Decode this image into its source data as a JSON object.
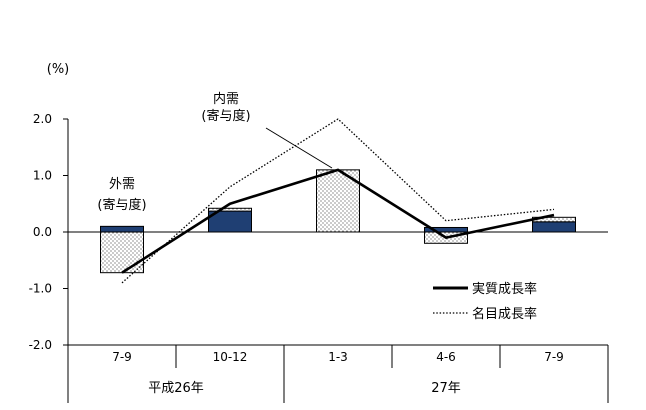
{
  "chart_data": {
    "type": "bar",
    "y_unit_label": "(%)",
    "ylim": [
      -2.0,
      2.0
    ],
    "y_ticks": [
      "2.0",
      "1.0",
      "0.0",
      "-1.0",
      "-2.0"
    ],
    "y_tick_values": [
      2.0,
      1.0,
      0.0,
      -1.0,
      -2.0
    ],
    "categories": [
      "7-9",
      "10-12",
      "1-3",
      "4-6",
      "7-9"
    ],
    "year_groups": [
      {
        "label": "平成26年",
        "span": [
          0,
          1
        ]
      },
      {
        "label": "27年",
        "span": [
          2,
          4
        ]
      }
    ],
    "bar_series": [
      {
        "name": "外需（寄与度）",
        "name_lines": [
          "外需",
          "(寄与度)"
        ],
        "values": [
          0.1,
          0.37,
          0.0,
          0.08,
          0.18
        ],
        "fill": "#1f3f73"
      },
      {
        "name": "内需（寄与度）",
        "name_lines": [
          "内需",
          "(寄与度)"
        ],
        "values": [
          -0.72,
          0.05,
          1.1,
          -0.2,
          0.08
        ],
        "fill": "dots"
      }
    ],
    "line_series": [
      {
        "name": "実質成長率",
        "values": [
          -0.72,
          0.5,
          1.1,
          -0.1,
          0.3
        ],
        "style": "solid"
      },
      {
        "name": "名目成長率",
        "values": [
          -0.9,
          0.8,
          2.0,
          0.2,
          0.4
        ],
        "style": "dotted"
      }
    ],
    "grid": false,
    "legend_position": "bottom-right",
    "colors": {
      "foreign_bar": "#1f3f73",
      "axis": "#000000",
      "dots": "#000000"
    }
  }
}
